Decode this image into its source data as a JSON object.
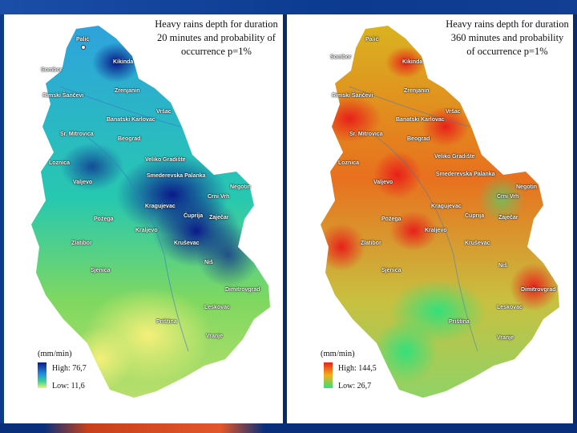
{
  "maps": [
    {
      "title": "Heavy rains depth for duration 20 minutes and probability of occurrence p=1%",
      "legend_unit": "(mm/min)",
      "legend_high": "High: 76,7",
      "legend_low": "Low: 11,6",
      "colors": {
        "high": "#0a1a8a",
        "mid": "#1f8fe0",
        "low": "#f4f07a"
      }
    },
    {
      "title": "Heavy rains depth for duration 360 minutes and probability of occurrence p=1%",
      "legend_unit": "(mm/min)",
      "legend_high": "High: 144,5",
      "legend_low": "Low: 26,7",
      "colors": {
        "high": "#e8201a",
        "mid": "#f2b21a",
        "low": "#34e07a"
      }
    }
  ],
  "cities": [
    "Palić",
    "Sombor",
    "Kikinda",
    "Zrenjanin",
    "Rimski Šančevi",
    "Vršac",
    "Banatski Karlovac",
    "Sr. Mitrovica",
    "Beograd",
    "Loznica",
    "Veliko Gradište",
    "Smederevska Palanka",
    "Valjevo",
    "Negotin",
    "Crni Vrh",
    "Kragujevac",
    "Ćuprija",
    "Zaječar",
    "Požega",
    "Kraljevo",
    "Zlatibor",
    "Kruševac",
    "Niš",
    "Sjenica",
    "Dimitrovgrad",
    "Leskovac",
    "Priština",
    "Vranje"
  ]
}
